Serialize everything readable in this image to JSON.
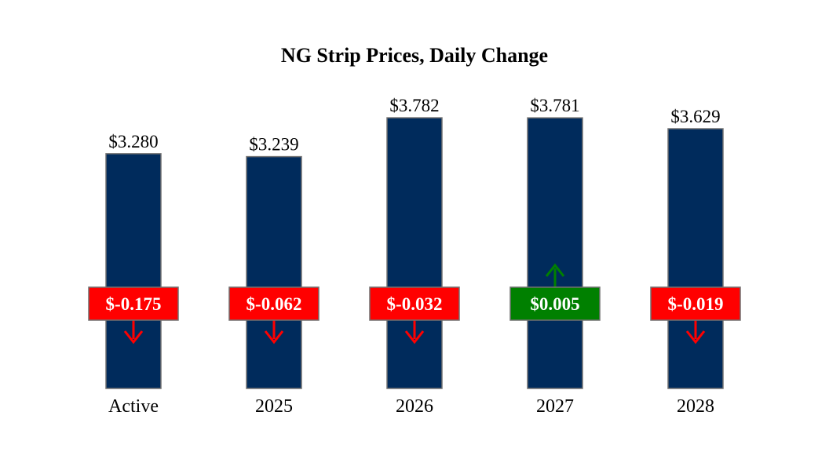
{
  "chart_data": {
    "type": "bar",
    "title": "NG Strip Prices, Daily Change",
    "xlabel": "",
    "ylabel": "",
    "ylim": [
      0,
      4
    ],
    "categories": [
      "Active",
      "2025",
      "2026",
      "2027",
      "2028"
    ],
    "values": [
      3.28,
      3.239,
      3.782,
      3.781,
      3.629
    ],
    "price_labels": [
      "$3.280",
      "$3.239",
      "$3.782",
      "$3.781",
      "$3.629"
    ],
    "changes": [
      -0.175,
      -0.062,
      -0.032,
      0.005,
      -0.019
    ],
    "change_labels": [
      "$-0.175",
      "$-0.062",
      "$-0.032",
      "$0.005",
      "$-0.019"
    ],
    "grid": false,
    "legend": "none",
    "colors": {
      "bar": "#002B5C",
      "bar_border": "#707070",
      "down": "#FF0000",
      "up": "#008000"
    }
  }
}
